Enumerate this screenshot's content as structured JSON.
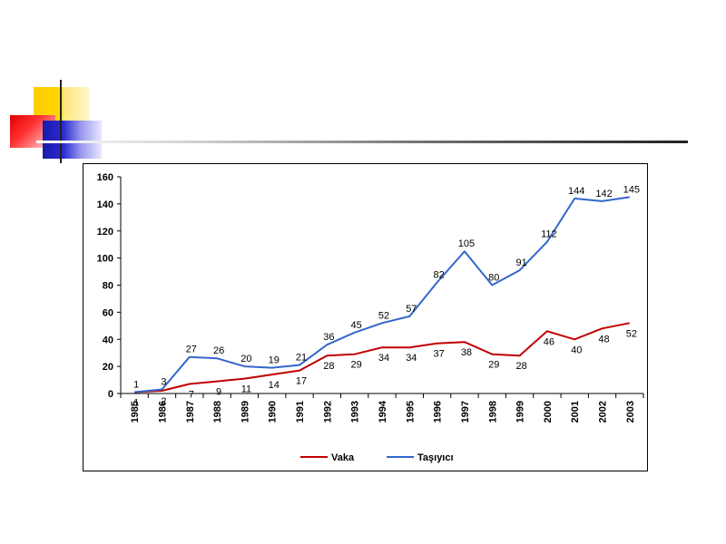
{
  "chart_data": {
    "type": "line",
    "title": "",
    "xlabel": "",
    "ylabel": "",
    "ylim": [
      0,
      160
    ],
    "yticks": [
      0,
      20,
      40,
      60,
      80,
      100,
      120,
      140,
      160
    ],
    "grid": false,
    "legend": "bottom",
    "categories": [
      "1985",
      "1986",
      "1987",
      "1988",
      "1989",
      "1990",
      "1991",
      "1992",
      "1993",
      "1994",
      "1995",
      "1996",
      "1997",
      "1998",
      "1999",
      "2000",
      "2001",
      "2002",
      "2003"
    ],
    "series": [
      {
        "name": "Vaka",
        "color": "#c00000",
        "values": [
          1,
          2,
          7,
          9,
          11,
          14,
          17,
          28,
          29,
          34,
          34,
          37,
          38,
          29,
          28,
          46,
          40,
          48,
          52
        ],
        "labels": [
          "1",
          "2",
          "7",
          "9",
          "11",
          "14",
          "17",
          "28",
          "29",
          "34",
          "34",
          "37",
          "38",
          "29",
          "28",
          "46",
          "40",
          "48",
          "52"
        ]
      },
      {
        "name": "Taşıyıcı",
        "color": "#3366cc",
        "values": [
          1,
          3,
          27,
          26,
          20,
          19,
          21,
          36,
          45,
          52,
          57,
          82,
          105,
          80,
          91,
          112,
          144,
          142,
          145
        ],
        "labels": [
          "1",
          "3",
          "27",
          "26",
          "20",
          "19",
          "21",
          "36",
          "45",
          "52",
          "57",
          "82",
          "105",
          "80",
          "91",
          "112",
          "144",
          "142",
          "145"
        ]
      }
    ]
  },
  "colors": {
    "accent_yellow": "#ffd700",
    "accent_red": "#ff2020",
    "accent_blue": "#2020cc",
    "rule": "#333333"
  }
}
